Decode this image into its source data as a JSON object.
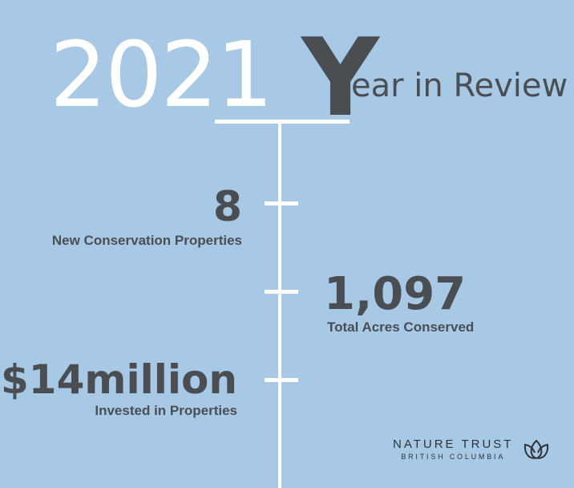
{
  "title": {
    "year": "2021",
    "initial": "Y",
    "rest": "ear in Review"
  },
  "stats": [
    {
      "number": "8",
      "label": "New Conservation Properties"
    },
    {
      "number": "1,097",
      "label": "Total Acres Conserved"
    },
    {
      "number": "$14million",
      "label": "Invested in Properties"
    }
  ],
  "logo": {
    "name": "NATURE TRUST",
    "region": "BRITISH COLUMBIA",
    "icon": "leaf-icon"
  },
  "colors": {
    "background": "#a8c9e6",
    "text": "#4a4e53",
    "accent": "#ffffff"
  }
}
